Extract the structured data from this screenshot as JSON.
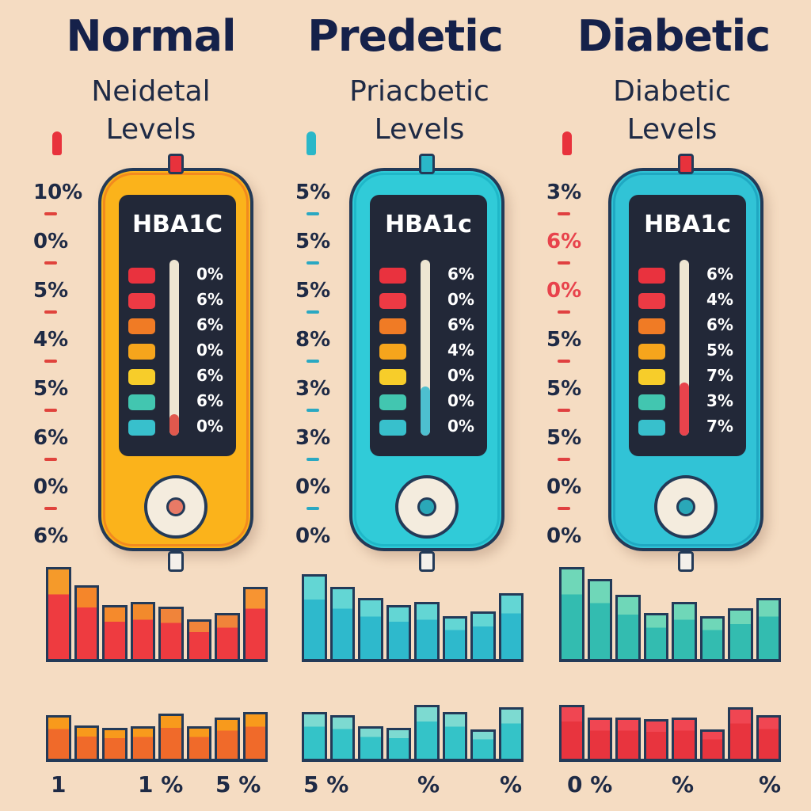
{
  "panels": [
    {
      "title": "Normal",
      "subtitle_1": "Neidetal",
      "subtitle_2": "Levels",
      "screen_title": "HBA1C",
      "scale": [
        "10%",
        "0%",
        "5%",
        "4%",
        "5%",
        "6%",
        "0%",
        "6%"
      ],
      "readings": [
        "0%",
        "6%",
        "6%",
        "0%",
        "6%",
        "6%",
        "0%"
      ],
      "footer": [
        "1",
        "1 %",
        "5 %"
      ],
      "device_color": "#fbb31b",
      "device_border_glow": "#f28a1e",
      "pin_color": "#e8323c",
      "tick_color": "#e0433c",
      "knob_dot_color": "#e87a66",
      "tube_fill_color": "#e0584d",
      "tube_fill_level": 0.12,
      "swatch_colors": [
        "#e9323e",
        "#ed3a44",
        "#f07b25",
        "#f6a51c",
        "#f7cd2a",
        "#42c6b0",
        "#38c0cc"
      ],
      "chart_top": {
        "values": [
          120,
          96,
          70,
          74,
          68,
          52,
          60,
          94
        ],
        "colors": [
          "#f59a2a",
          "#f5862a",
          "#f58a2c",
          "#f28a2c",
          "#f0843a",
          "#f0843a",
          "#f0843a",
          "#f79432"
        ],
        "colors_bottom": [
          "#ee3b40",
          "#ee3b40",
          "#ee3b40",
          "#ee3b40",
          "#ee3b40",
          "#ee3b40",
          "#ee3b40",
          "#ee3b40"
        ]
      },
      "chart_bottom": {
        "values": [
          60,
          46,
          42,
          44,
          62,
          44,
          56,
          64
        ],
        "colors": [
          "#f89a1c",
          "#f89a1c",
          "#f89a1c",
          "#f89a1c",
          "#f89a1c",
          "#f89a1c",
          "#f89a1c",
          "#f89a1c"
        ],
        "colors_bottom": [
          "#f06a2a",
          "#f06a2a",
          "#f06a2a",
          "#f06a2a",
          "#f06a2a",
          "#f06a2a",
          "#f06a2a",
          "#f06a2a"
        ]
      }
    },
    {
      "title": "Predetic",
      "subtitle_1": "Priacbetic",
      "subtitle_2": "Levels",
      "screen_title": "HBA1c",
      "scale": [
        "5%",
        "5%",
        "5%",
        "8%",
        "3%",
        "3%",
        "0%",
        "0%"
      ],
      "readings": [
        "6%",
        "0%",
        "6%",
        "4%",
        "0%",
        "0%",
        "0%"
      ],
      "footer": [
        "5 %",
        "%",
        "%"
      ],
      "device_color": "#30cbd8",
      "device_border_glow": "#1fb7c8",
      "pin_color": "#2ab7c8",
      "tick_color": "#2aa8c2",
      "knob_dot_color": "#2aa8b8",
      "tube_fill_color": "#4dbfcf",
      "tube_fill_level": 0.28,
      "swatch_colors": [
        "#e9323e",
        "#ed3a44",
        "#f07b25",
        "#f6a51c",
        "#f7cd2a",
        "#42c6b0",
        "#38c0cc"
      ],
      "chart_top": {
        "values": [
          110,
          94,
          80,
          70,
          74,
          56,
          62,
          86
        ],
        "colors": [
          "#63d6d4",
          "#63d6d4",
          "#63d6d4",
          "#63d6d4",
          "#63d6d4",
          "#63d6d4",
          "#63d6d4",
          "#63d6d4"
        ],
        "colors_bottom": [
          "#2eb9cc",
          "#2eb9cc",
          "#2eb9cc",
          "#2eb9cc",
          "#2eb9cc",
          "#2eb9cc",
          "#2eb9cc",
          "#2eb9cc"
        ]
      },
      "chart_bottom": {
        "values": [
          64,
          60,
          44,
          42,
          74,
          64,
          40,
          70
        ],
        "colors": [
          "#7ddad1",
          "#7ddad1",
          "#7ddad1",
          "#7ddad1",
          "#7ddad1",
          "#7ddad1",
          "#7ddad1",
          "#7ddad1"
        ],
        "colors_bottom": [
          "#34c3c8",
          "#34c3c8",
          "#34c3c8",
          "#34c3c8",
          "#34c3c8",
          "#34c3c8",
          "#34c3c8",
          "#34c3c8"
        ]
      }
    },
    {
      "title": "Diabetic",
      "subtitle_1": "Diabetic",
      "subtitle_2": "Levels",
      "screen_title": "HBA1c",
      "scale": [
        "3%",
        "6%",
        "0%",
        "5%",
        "5%",
        "5%",
        "0%",
        "0%"
      ],
      "readings": [
        "6%",
        "4%",
        "6%",
        "5%",
        "7%",
        "3%",
        "7%"
      ],
      "footer": [
        "0 %",
        "%",
        "%"
      ],
      "device_color": "#31c3d6",
      "device_border_glow": "#1fa8c2",
      "pin_color": "#e8323c",
      "tick_color": "#e04040",
      "knob_dot_color": "#2aa8b8",
      "tube_fill_color": "#e8434c",
      "tube_fill_level": 0.3,
      "scale_colors": [
        "#1e2a45",
        "#e8434c",
        "#e8434c",
        "#1e2a45",
        "#1e2a45",
        "#1e2a45",
        "#1e2a45",
        "#1e2a45"
      ],
      "swatch_colors": [
        "#e9323e",
        "#ed3a44",
        "#f07b25",
        "#f6a51c",
        "#f7cd2a",
        "#42c6b0",
        "#38c0cc"
      ],
      "chart_top": {
        "values": [
          120,
          104,
          84,
          60,
          74,
          56,
          66,
          80
        ],
        "colors": [
          "#6fd7b8",
          "#6fd7b8",
          "#6fd7b8",
          "#6fd7b8",
          "#6fd7b8",
          "#6fd7b8",
          "#6fd7b8",
          "#6fd7b8"
        ],
        "colors_bottom": [
          "#33bcb0",
          "#33bcb0",
          "#33bcb0",
          "#33bcb0",
          "#33bcb0",
          "#33bcb0",
          "#33bcb0",
          "#33bcb0"
        ]
      },
      "chart_bottom": {
        "values": [
          74,
          56,
          56,
          54,
          56,
          40,
          70,
          60
        ],
        "colors": [
          "#f04652",
          "#f04652",
          "#f04652",
          "#f04652",
          "#f04652",
          "#f04652",
          "#f04652",
          "#f04652"
        ],
        "colors_bottom": [
          "#e8343e",
          "#e8343e",
          "#e8343e",
          "#e8343e",
          "#e8343e",
          "#e8343e",
          "#e8343e",
          "#e8343e"
        ]
      }
    }
  ]
}
